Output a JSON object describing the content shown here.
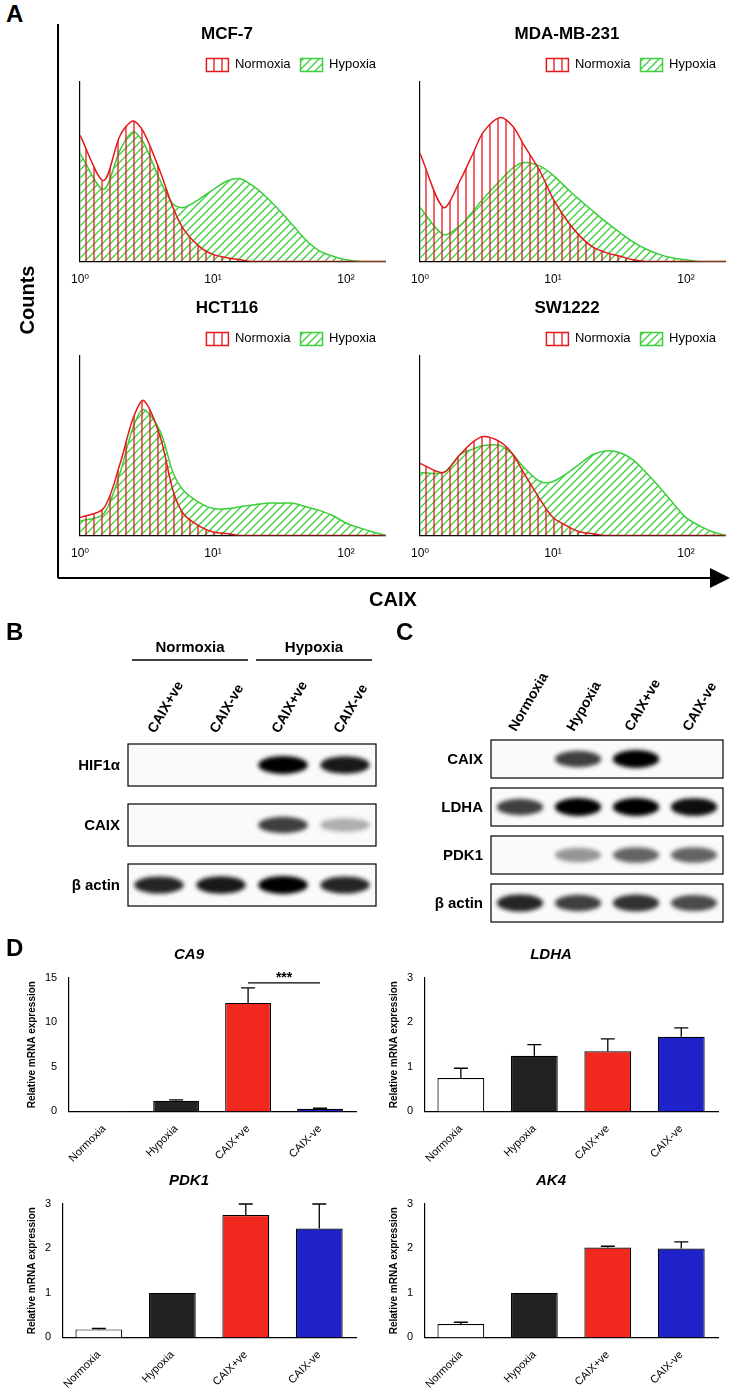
{
  "panel_labels": [
    "A",
    "B",
    "C",
    "D"
  ],
  "panel_a": {
    "x_label": "CAIX",
    "y_label": "Counts"
  },
  "chart_data": [
    {
      "type": "line",
      "title": "MCF-7",
      "log": "x",
      "grid": false,
      "legend": "upper right",
      "tick_labels": "x",
      "xlim": [
        1,
        200
      ],
      "xticks": [
        {
          "value": 1,
          "label": "10⁰"
        },
        {
          "value": 10,
          "label": "10¹"
        },
        {
          "value": 100,
          "label": "10²"
        }
      ],
      "ylim": [
        0,
        100
      ],
      "x": [
        1,
        1.5,
        2,
        2.5,
        3,
        4,
        5,
        6,
        8,
        10,
        13,
        16,
        20,
        25,
        32,
        40,
        50,
        63,
        80,
        100,
        130,
        160,
        200
      ],
      "series": [
        {
          "name": "Normoxia",
          "color": "#e31a1c",
          "values": [
            70,
            45,
            70,
            78,
            72,
            50,
            30,
            18,
            8,
            4,
            2,
            1,
            0,
            0,
            0,
            0,
            0,
            0,
            0,
            0,
            0,
            0,
            0
          ]
        },
        {
          "name": "Hypoxia",
          "color": "#3ccf3c",
          "values": [
            60,
            40,
            62,
            72,
            66,
            45,
            32,
            30,
            35,
            40,
            45,
            46,
            42,
            36,
            28,
            20,
            12,
            6,
            3,
            1,
            0,
            0,
            0
          ]
        }
      ]
    },
    {
      "type": "line",
      "title": "MDA-MB-231",
      "log": "x",
      "grid": false,
      "legend": "upper right",
      "tick_labels": "x",
      "xlim": [
        1,
        200
      ],
      "xticks": [
        {
          "value": 1,
          "label": "10⁰"
        },
        {
          "value": 10,
          "label": "10¹"
        },
        {
          "value": 100,
          "label": "10²"
        }
      ],
      "ylim": [
        0,
        100
      ],
      "x": [
        1,
        1.5,
        2,
        2.5,
        3,
        4,
        5,
        6,
        8,
        10,
        13,
        16,
        20,
        25,
        32,
        40,
        50,
        63,
        80,
        100,
        130,
        160,
        200
      ],
      "series": [
        {
          "name": "Normoxia",
          "color": "#e31a1c",
          "values": [
            60,
            30,
            45,
            60,
            72,
            80,
            75,
            65,
            50,
            35,
            22,
            14,
            8,
            5,
            3,
            1,
            0,
            0,
            0,
            0,
            0,
            0,
            0
          ]
        },
        {
          "name": "Hypoxia",
          "color": "#3ccf3c",
          "values": [
            30,
            15,
            20,
            28,
            35,
            45,
            52,
            55,
            53,
            48,
            40,
            34,
            28,
            22,
            16,
            11,
            7,
            4,
            2,
            1,
            0,
            0,
            0
          ]
        }
      ]
    },
    {
      "type": "line",
      "title": "HCT116",
      "log": "x",
      "grid": false,
      "legend": "upper right",
      "tick_labels": "x",
      "xlim": [
        1,
        200
      ],
      "xticks": [
        {
          "value": 1,
          "label": "10⁰"
        },
        {
          "value": 10,
          "label": "10¹"
        },
        {
          "value": 100,
          "label": "10²"
        }
      ],
      "ylim": [
        0,
        100
      ],
      "x": [
        1,
        1.5,
        2,
        2.5,
        3,
        4,
        5,
        6,
        8,
        10,
        13,
        16,
        20,
        25,
        32,
        40,
        50,
        63,
        80,
        100,
        130,
        160,
        200
      ],
      "series": [
        {
          "name": "Normoxia",
          "color": "#e31a1c",
          "values": [
            10,
            15,
            40,
            65,
            75,
            55,
            25,
            12,
            5,
            2,
            1,
            0,
            0,
            0,
            0,
            0,
            0,
            0,
            0,
            0,
            0,
            0,
            0
          ]
        },
        {
          "name": "Hypoxia",
          "color": "#3ccf3c",
          "values": [
            8,
            12,
            35,
            60,
            70,
            58,
            35,
            25,
            18,
            15,
            15,
            16,
            17,
            18,
            18,
            18,
            16,
            14,
            11,
            7,
            4,
            2,
            0
          ]
        }
      ]
    },
    {
      "type": "line",
      "title": "SW1222",
      "log": "x",
      "grid": false,
      "legend": "upper right",
      "tick_labels": "x",
      "xlim": [
        1,
        200
      ],
      "xticks": [
        {
          "value": 1,
          "label": "10⁰"
        },
        {
          "value": 10,
          "label": "10¹"
        },
        {
          "value": 100,
          "label": "10²"
        }
      ],
      "ylim": [
        0,
        100
      ],
      "x": [
        1,
        1.5,
        2,
        2.5,
        3,
        4,
        5,
        6,
        8,
        10,
        13,
        16,
        20,
        25,
        32,
        40,
        50,
        63,
        80,
        100,
        130,
        160,
        200
      ],
      "series": [
        {
          "name": "Normoxia",
          "color": "#e31a1c",
          "values": [
            40,
            35,
            45,
            52,
            55,
            52,
            45,
            35,
            20,
            10,
            5,
            2,
            1,
            0,
            0,
            0,
            0,
            0,
            0,
            0,
            0,
            0,
            0
          ]
        },
        {
          "name": "Hypoxia",
          "color": "#3ccf3c",
          "values": [
            35,
            35,
            45,
            48,
            50,
            50,
            45,
            38,
            30,
            30,
            35,
            40,
            45,
            47,
            46,
            42,
            35,
            27,
            18,
            10,
            5,
            2,
            0
          ]
        }
      ]
    },
    {
      "type": "bar",
      "title": "CA9",
      "y_label": "Relative mRNA expression",
      "grid": false,
      "categories": [
        "Normoxia",
        "Hypoxia",
        "CAIX+ve",
        "CAIX-ve"
      ],
      "values": [
        0.02,
        1.2,
        12.2,
        0.3
      ],
      "errors": [
        0,
        0.1,
        1.7,
        0.05
      ],
      "colors": [
        "#ffffff",
        "#222222",
        "#f0281e",
        "#1f22c8"
      ],
      "ylim": [
        0,
        15
      ],
      "yticks": [
        0,
        5,
        10,
        15
      ],
      "annotations": [
        {
          "text": "***",
          "between": [
            "CAIX+ve",
            "CAIX-ve"
          ]
        }
      ]
    },
    {
      "type": "bar",
      "title": "LDHA",
      "y_label": "Relative mRNA expression",
      "grid": false,
      "categories": [
        "Normoxia",
        "Hypoxia",
        "CAIX+ve",
        "CAIX-ve"
      ],
      "values": [
        0.75,
        1.25,
        1.35,
        1.68
      ],
      "errors": [
        0.22,
        0.25,
        0.28,
        0.2
      ],
      "colors": [
        "#ffffff",
        "#222222",
        "#f0281e",
        "#1f22c8"
      ],
      "ylim": [
        0,
        3
      ],
      "yticks": [
        0,
        1,
        2,
        3
      ]
    },
    {
      "type": "bar",
      "title": "PDK1",
      "y_label": "Relative mRNA expression",
      "grid": false,
      "categories": [
        "Normoxia",
        "Hypoxia",
        "CAIX+ve",
        "CAIX-ve"
      ],
      "values": [
        0.18,
        1.0,
        2.75,
        2.45
      ],
      "errors": [
        0.02,
        0,
        0.25,
        0.55
      ],
      "colors": [
        "#ffffff",
        "#222222",
        "#f0281e",
        "#1f22c8"
      ],
      "ylim": [
        0,
        3
      ],
      "yticks": [
        0,
        1,
        2,
        3
      ]
    },
    {
      "type": "bar",
      "title": "AK4",
      "y_label": "Relative mRNA expression",
      "grid": false,
      "categories": [
        "Normoxia",
        "Hypoxia",
        "CAIX+ve",
        "CAIX-ve"
      ],
      "values": [
        0.3,
        1.0,
        2.02,
        2.0
      ],
      "errors": [
        0.04,
        0,
        0.03,
        0.15
      ],
      "colors": [
        "#ffffff",
        "#222222",
        "#f0281e",
        "#1f22c8"
      ],
      "ylim": [
        0,
        3
      ],
      "yticks": [
        0,
        1,
        2,
        3
      ]
    }
  ],
  "blots": [
    {
      "groups": [
        {
          "label": "Normoxia",
          "span": 2
        },
        {
          "label": "Hypoxia",
          "span": 2
        }
      ],
      "lanes": [
        "CAIX+ve",
        "CAIX-ve",
        "CAIX+ve",
        "CAIX-ve"
      ],
      "rows": [
        {
          "label": "HIF1α",
          "bands": [
            0,
            0,
            1,
            0.9
          ]
        },
        {
          "label": "CAIX",
          "bands": [
            0,
            0,
            0.75,
            0.3
          ]
        },
        {
          "label": "β actin",
          "bands": [
            0.85,
            0.9,
            1,
            0.85
          ]
        }
      ]
    },
    {
      "lanes": [
        "Normoxia",
        "Hypoxia",
        "CAIX+ve",
        "CAIX-ve"
      ],
      "rows": [
        {
          "label": "CAIX",
          "bands": [
            0,
            0.75,
            1,
            0
          ]
        },
        {
          "label": "LDHA",
          "bands": [
            0.75,
            1,
            1,
            0.95
          ]
        },
        {
          "label": "PDK1",
          "bands": [
            0,
            0.4,
            0.6,
            0.6
          ]
        },
        {
          "label": "β actin",
          "bands": [
            0.85,
            0.75,
            0.8,
            0.7
          ]
        }
      ]
    }
  ]
}
